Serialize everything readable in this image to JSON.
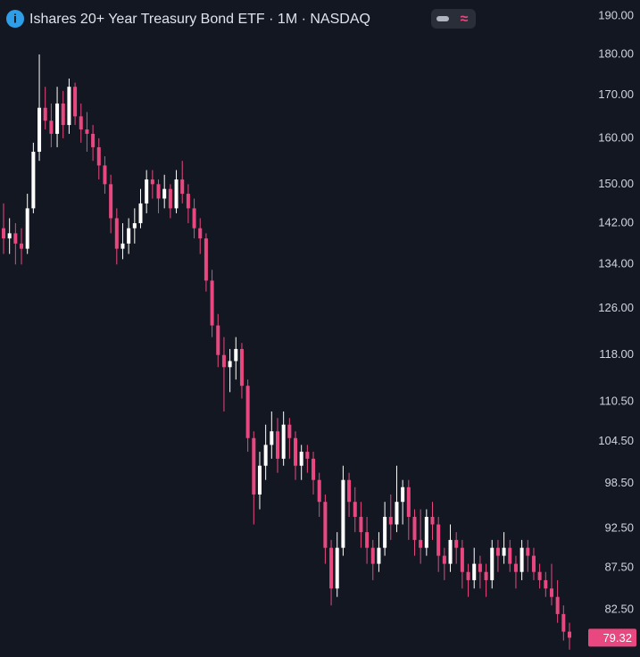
{
  "chart_data": {
    "type": "candlestick",
    "title": "Ishares 20+ Year Treasury Bond ETF · 1M · NASDAQ",
    "log_scale": true,
    "up_color": "#ffffff",
    "down_color": "#e8487f",
    "ylim": [
      77.2,
      194.3
    ],
    "yticks": [
      {
        "value": 190,
        "label": "190.00"
      },
      {
        "value": 180,
        "label": "180.00"
      },
      {
        "value": 170,
        "label": "170.00"
      },
      {
        "value": 160,
        "label": "160.00"
      },
      {
        "value": 150,
        "label": "150.00"
      },
      {
        "value": 142,
        "label": "142.00"
      },
      {
        "value": 134,
        "label": "134.00"
      },
      {
        "value": 126,
        "label": "126.00"
      },
      {
        "value": 118,
        "label": "118.00"
      },
      {
        "value": 110.5,
        "label": "110.50"
      },
      {
        "value": 104.5,
        "label": "104.50"
      },
      {
        "value": 98.5,
        "label": "98.50"
      },
      {
        "value": 92.5,
        "label": "92.50"
      },
      {
        "value": 87.5,
        "label": "87.50"
      },
      {
        "value": 82.5,
        "label": "82.50"
      }
    ],
    "open": [
      141,
      139,
      140,
      138,
      137,
      145,
      157,
      167,
      164,
      161,
      168,
      163,
      172,
      165,
      162,
      161,
      158,
      154,
      150,
      143,
      137,
      138,
      141,
      142,
      146,
      151,
      150,
      147,
      149,
      145,
      151,
      148,
      145,
      141,
      139,
      131,
      123,
      118,
      116,
      117,
      119,
      113,
      105,
      97,
      101,
      104,
      106,
      102,
      107,
      105,
      101,
      103,
      102,
      99,
      96,
      90,
      85,
      90,
      99,
      96,
      94,
      92,
      90,
      88,
      90,
      94,
      93,
      96,
      98,
      94,
      91,
      90,
      94,
      93,
      89,
      88,
      91,
      90,
      87,
      86,
      88,
      87,
      86,
      90,
      89,
      90,
      88,
      87,
      90,
      89,
      87,
      86,
      85,
      84,
      82,
      80
    ],
    "high": [
      146,
      143,
      142,
      141,
      148,
      159,
      180,
      172,
      168,
      172,
      171,
      174,
      173,
      168,
      166,
      163,
      160,
      156,
      152,
      145,
      142,
      143,
      145,
      149,
      153,
      153,
      151,
      152,
      150,
      153,
      155,
      150,
      147,
      143,
      140,
      133,
      125,
      121,
      119,
      121,
      120,
      114,
      106,
      103,
      107,
      109,
      108,
      109,
      108,
      106,
      104,
      104,
      103,
      100,
      97,
      91,
      92,
      101,
      100,
      98,
      96,
      94,
      91,
      92,
      96,
      97,
      101,
      99,
      99,
      95,
      95,
      95,
      96,
      94,
      90,
      93,
      92,
      91,
      88,
      90,
      89,
      88,
      91,
      91,
      92,
      91,
      89,
      91,
      91,
      90,
      88,
      87,
      88,
      86,
      83,
      81
    ],
    "low": [
      136,
      136,
      134,
      134,
      136,
      144,
      155,
      162,
      158,
      158,
      160,
      161,
      163,
      159,
      157,
      155,
      151,
      148,
      140,
      134,
      135,
      136,
      138,
      141,
      144,
      147,
      144,
      145,
      143,
      144,
      146,
      142,
      139,
      136,
      129,
      121,
      116,
      109,
      112,
      114,
      111,
      103,
      93,
      95,
      99,
      102,
      100,
      101,
      102,
      99,
      99,
      100,
      97,
      94,
      88,
      83,
      84,
      89,
      94,
      92,
      90,
      88,
      86,
      87,
      89,
      91,
      92,
      93,
      91,
      89,
      88,
      89,
      91,
      87,
      86,
      87,
      88,
      85,
      84,
      85,
      85,
      84,
      85,
      87,
      88,
      87,
      85,
      86,
      87,
      86,
      85,
      84,
      83,
      81,
      79,
      78
    ],
    "close": [
      139,
      140,
      138,
      137,
      145,
      157,
      167,
      164,
      161,
      168,
      163,
      172,
      165,
      162,
      161,
      158,
      154,
      150,
      143,
      137,
      138,
      141,
      142,
      146,
      151,
      150,
      147,
      149,
      145,
      151,
      148,
      145,
      141,
      139,
      131,
      123,
      118,
      116,
      117,
      119,
      113,
      105,
      97,
      101,
      104,
      106,
      102,
      107,
      105,
      101,
      103,
      102,
      99,
      96,
      90,
      85,
      90,
      99,
      96,
      94,
      92,
      90,
      88,
      90,
      94,
      93,
      96,
      98,
      94,
      91,
      90,
      94,
      93,
      89,
      88,
      91,
      90,
      87,
      86,
      88,
      87,
      86,
      90,
      89,
      90,
      88,
      87,
      90,
      89,
      87,
      86,
      85,
      84,
      82,
      80,
      79.32
    ]
  }
}
